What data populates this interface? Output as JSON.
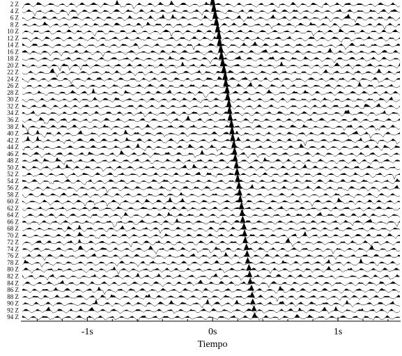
{
  "chart_data": {
    "type": "wiggle",
    "xlabel": "Tiempo",
    "xlim": [
      -1.53,
      1.5
    ],
    "xticks": [
      {
        "value": -1,
        "label": "-1s"
      },
      {
        "value": 0,
        "label": "0s"
      },
      {
        "value": 1,
        "label": "1s"
      }
    ],
    "xminorticks": [
      -1.4,
      -1.2,
      -0.8,
      -0.6,
      -0.4,
      -0.2,
      0.2,
      0.4,
      0.6,
      0.8,
      1.2,
      1.4
    ],
    "color": "#000000",
    "categories": [
      "2 Z",
      "4 Z",
      "6 Z",
      "8 Z",
      "10 Z",
      "12 Z",
      "14 Z",
      "16 Z",
      "18 Z",
      "20 Z",
      "22 Z",
      "24 Z",
      "26 Z",
      "28 Z",
      "30 Z",
      "32 Z",
      "34 Z",
      "36 Z",
      "38 Z",
      "40 Z",
      "42 Z",
      "44 Z",
      "46 Z",
      "48 Z",
      "50 Z",
      "52 Z",
      "54 Z",
      "56 Z",
      "58 Z",
      "60 Z",
      "62 Z",
      "64 Z",
      "66 Z",
      "68 Z",
      "70 Z",
      "72 Z",
      "74 Z",
      "76 Z",
      "78 Z",
      "80 Z",
      "82 Z",
      "84 Z",
      "86 Z",
      "88 Z",
      "90 Z",
      "92 Z",
      "94 Z"
    ],
    "values": [
      0,
      0.01,
      0.02,
      0.03,
      0.04,
      0.05,
      0.055,
      0.065,
      0.07,
      0.08,
      0.09,
      0.1,
      0.105,
      0.115,
      0.12,
      0.13,
      0.135,
      0.14,
      0.15,
      0.155,
      0.16,
      0.17,
      0.175,
      0.18,
      0.19,
      0.195,
      0.2,
      0.21,
      0.215,
      0.22,
      0.23,
      0.235,
      0.24,
      0.25,
      0.255,
      0.26,
      0.27,
      0.275,
      0.28,
      0.29,
      0.295,
      0.3,
      0.31,
      0.315,
      0.32,
      0.33,
      0.335
    ]
  }
}
